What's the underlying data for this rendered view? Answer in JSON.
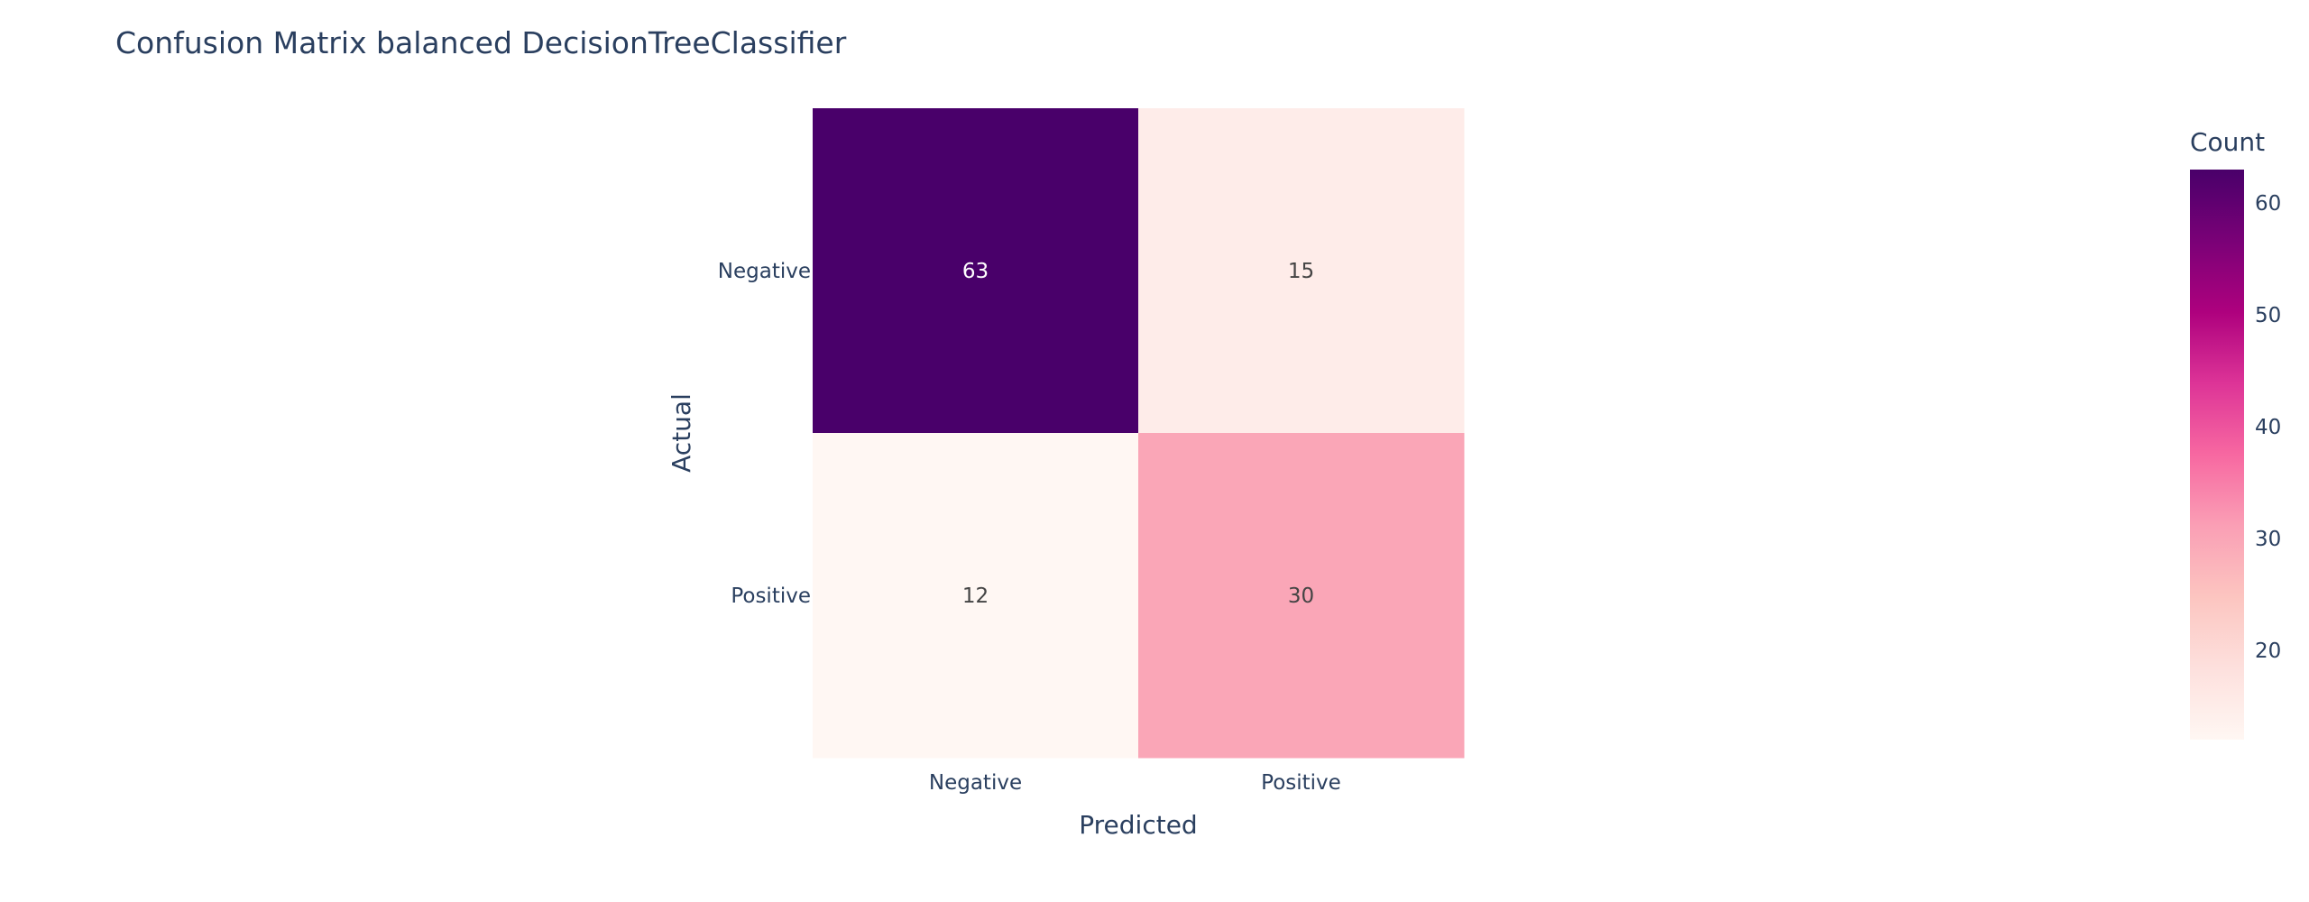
{
  "chart_data": {
    "type": "heatmap",
    "title": "Confusion Matrix balanced DecisionTreeClassifier",
    "xlabel": "Predicted",
    "ylabel": "Actual",
    "x_categories": [
      "Negative",
      "Positive"
    ],
    "y_categories": [
      "Negative",
      "Positive"
    ],
    "z": [
      [
        63,
        15
      ],
      [
        12,
        30
      ]
    ],
    "colorbar": {
      "title": "Count",
      "range": [
        12,
        63
      ],
      "ticks": [
        20,
        30,
        40,
        50,
        60
      ],
      "tick_labels": [
        "20",
        "30",
        "40",
        "50",
        "60"
      ],
      "colorscale": [
        "#fff7f3",
        "#fde0dd",
        "#fcc5c0",
        "#fa9fb5",
        "#f768a1",
        "#dd3497",
        "#ae017e",
        "#7a0177",
        "#49006a"
      ]
    }
  }
}
